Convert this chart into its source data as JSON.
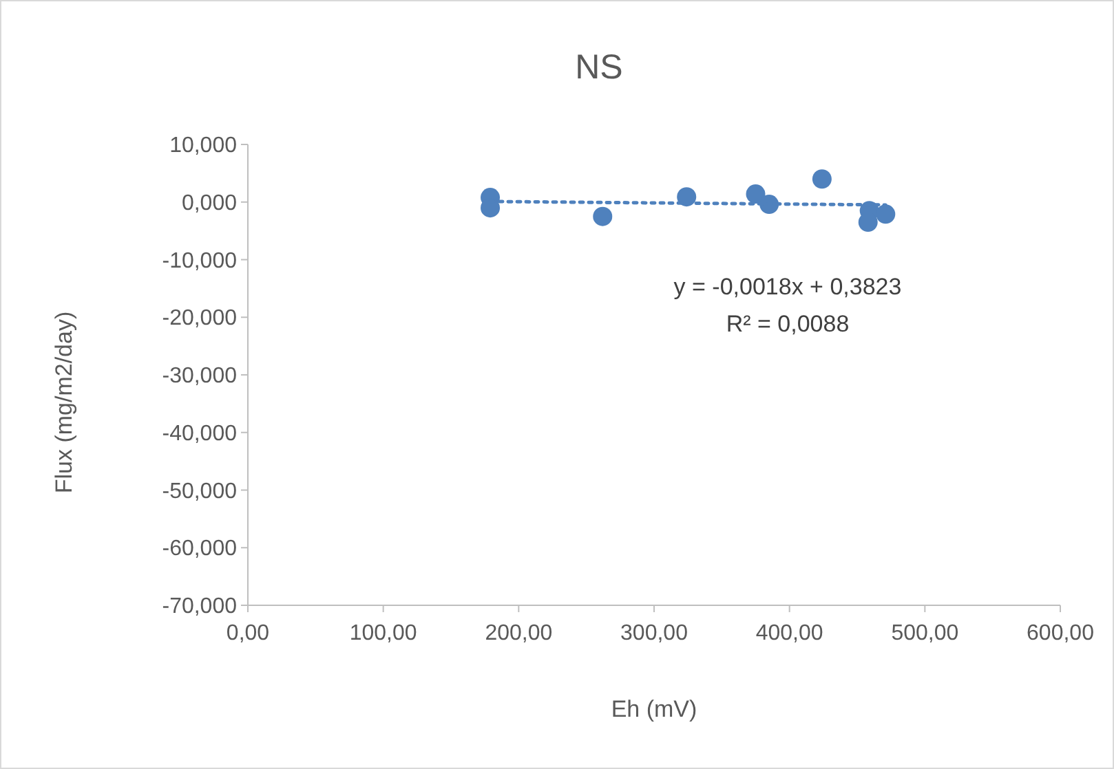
{
  "chart_data": {
    "type": "scatter",
    "title": "NS",
    "xlabel": "Eh (mV)",
    "ylabel": "Flux (mg/m2/day)",
    "xlim": [
      0,
      600
    ],
    "ylim": [
      -70,
      10
    ],
    "xticks": [
      {
        "value": 0,
        "label": "0,00"
      },
      {
        "value": 100,
        "label": "100,00"
      },
      {
        "value": 200,
        "label": "200,00"
      },
      {
        "value": 300,
        "label": "300,00"
      },
      {
        "value": 400,
        "label": "400,00"
      },
      {
        "value": 500,
        "label": "500,00"
      },
      {
        "value": 600,
        "label": "600,00"
      }
    ],
    "yticks": [
      {
        "value": -70,
        "label": "-70,000"
      },
      {
        "value": -60,
        "label": "-60,000"
      },
      {
        "value": -50,
        "label": "-50,000"
      },
      {
        "value": -40,
        "label": "-40,000"
      },
      {
        "value": -30,
        "label": "-30,000"
      },
      {
        "value": -20,
        "label": "-20,000"
      },
      {
        "value": -10,
        "label": "-10,000"
      },
      {
        "value": 0,
        "label": "0,000"
      },
      {
        "value": 10,
        "label": "10,000"
      }
    ],
    "grid": false,
    "marker": "circle",
    "series": [
      {
        "color": "#4f81bd",
        "x": [
          179,
          179,
          262,
          324,
          375,
          385,
          424,
          459,
          458,
          471
        ],
        "values": [
          0.8,
          -1.0,
          -2.5,
          0.9,
          1.4,
          -0.4,
          4.0,
          -1.5,
          -3.5,
          -2.1
        ]
      },
      {
        "type": "line",
        "color": "#4f81bd",
        "line_style": "dotted",
        "marker": "none",
        "x": [
          179,
          471
        ],
        "values": [
          0.1,
          -0.5
        ]
      }
    ],
    "annotations": [
      "y = -0,0018x + 0,3823",
      "R² = 0,0088"
    ]
  }
}
